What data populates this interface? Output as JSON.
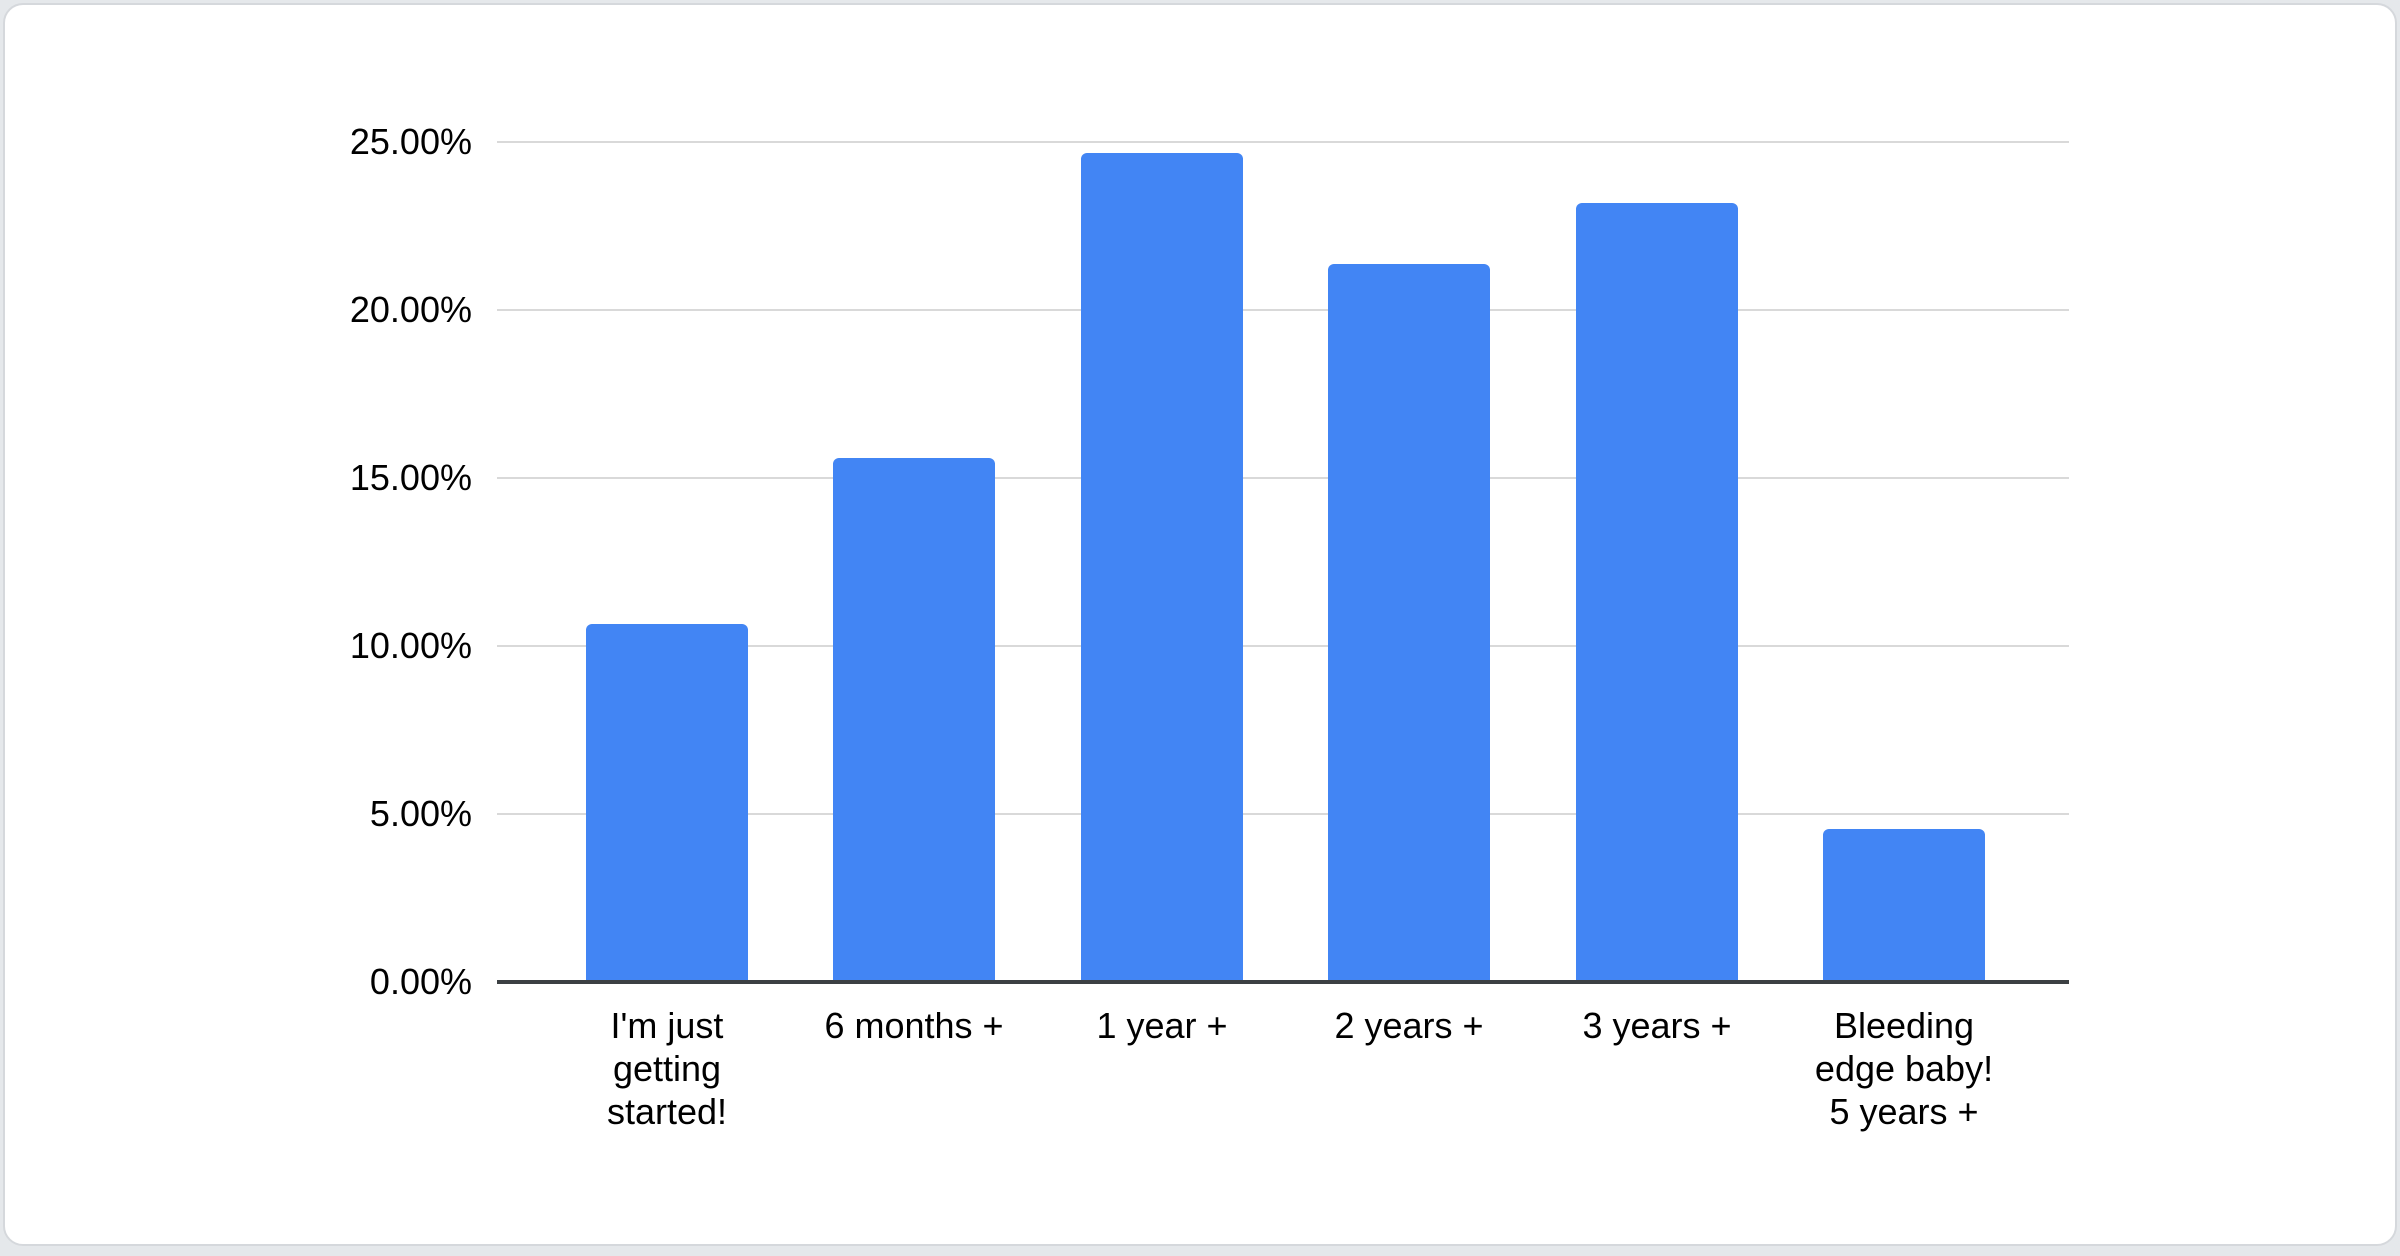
{
  "window": {
    "background_color": "#e5e8eb",
    "card_background_color": "#ffffff",
    "card_border_color": "#d5d8dc"
  },
  "chart_data": {
    "type": "bar",
    "title": "",
    "xlabel": "",
    "ylabel": "",
    "categories": [
      "I'm just getting started!",
      "6 months +",
      "1 year +",
      "2 years +",
      "3 years +",
      "Bleeding edge baby! 5 years +"
    ],
    "category_label_lines": [
      [
        "I'm just",
        "getting",
        "started!"
      ],
      [
        "6 months +"
      ],
      [
        "1 year +"
      ],
      [
        "2 years +"
      ],
      [
        "3 years +"
      ],
      [
        "Bleeding",
        "edge baby!",
        "5 years +"
      ]
    ],
    "series": [
      {
        "name": "Responses",
        "values": [
          10.64,
          15.59,
          24.67,
          21.38,
          23.17,
          4.54
        ]
      }
    ],
    "value_unit": "%",
    "ylim": [
      0,
      25
    ],
    "y_ticks": [
      0,
      5,
      10,
      15,
      20,
      25
    ],
    "y_tick_labels": [
      "0.00%",
      "5.00%",
      "10.00%",
      "15.00%",
      "20.00%",
      "25.00%"
    ],
    "grid": true,
    "legend_position": "none",
    "colors": {
      "bar": "#4285f4",
      "gridline": "#d9d9d9",
      "axis_line": "#3c4043",
      "label_text": "#000000"
    }
  }
}
